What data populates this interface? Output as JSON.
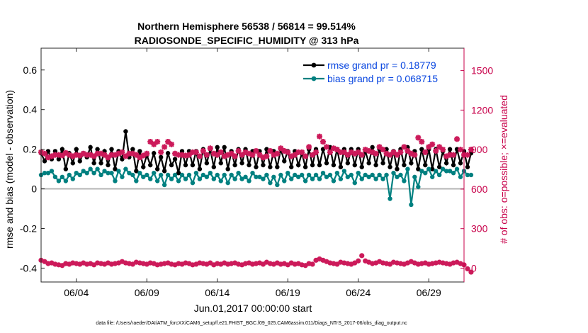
{
  "chart_data": {
    "type": "line",
    "title": "Northern Hemisphere 56538 / 56814 = 99.514%",
    "subtitle": "RADIOSONDE_SPECIFIC_HUMIDITY @ 313 hPa",
    "xlabel": "Jun.01,2017 00:00:00 start",
    "ylabel_left": "rmse and bias (model - observation)",
    "ylabel_right": "# of obs: o=possible; ×=evaluated",
    "footnote": "data file: /Users/raeder/DAI/ATM_forcXX/CAM6_setup/f.e21.FHIST_BGC.f09_025.CAM6assim.011/Diags_NTrS_2017-06/obs_diag_output.nc",
    "x_range": [
      1.5,
      31.5
    ],
    "x_ticks": [
      {
        "value": 4,
        "label": "06/04"
      },
      {
        "value": 9,
        "label": "06/09"
      },
      {
        "value": 14,
        "label": "06/14"
      },
      {
        "value": 19,
        "label": "06/19"
      },
      {
        "value": 24,
        "label": "06/24"
      },
      {
        "value": 29,
        "label": "06/29"
      }
    ],
    "ylim_left": [
      -0.47,
      0.71
    ],
    "yticks_left": [
      {
        "value": 0.6,
        "label": "0.6"
      },
      {
        "value": 0.4,
        "label": "0.4"
      },
      {
        "value": 0.2,
        "label": "0.2"
      },
      {
        "value": 0,
        "label": "0"
      },
      {
        "value": -0.2,
        "label": "-0.2"
      },
      {
        "value": -0.4,
        "label": "-0.4"
      }
    ],
    "ylim_right": [
      -105,
      1670
    ],
    "yticks_right": [
      {
        "value": 1500,
        "label": "1500"
      },
      {
        "value": 1200,
        "label": "1200"
      },
      {
        "value": 900,
        "label": "900"
      },
      {
        "value": 600,
        "label": "600"
      },
      {
        "value": 300,
        "label": "300"
      },
      {
        "value": 0,
        "label": "0"
      }
    ],
    "zero_line": 0,
    "x_start": 1.5,
    "x_step": 0.25,
    "series": [
      {
        "name": "rmse",
        "legend": "rmse grand pr = 0.18779",
        "axis": "left",
        "color": "#000000",
        "marker": "circle",
        "values": [
          0.18,
          0.14,
          0.19,
          0.15,
          0.19,
          0.15,
          0.2,
          0.1,
          0.18,
          0.13,
          0.2,
          0.14,
          0.18,
          0.16,
          0.21,
          0.13,
          0.2,
          0.13,
          0.19,
          0.12,
          0.2,
          0.1,
          0.19,
          0.15,
          0.29,
          0.16,
          0.2,
          0.09,
          0.19,
          0.11,
          0.17,
          0.12,
          0.18,
          0.1,
          0.16,
          0.09,
          0.18,
          0.12,
          0.15,
          0.08,
          0.19,
          0.12,
          0.19,
          0.12,
          0.19,
          0.1,
          0.2,
          0.13,
          0.2,
          0.11,
          0.21,
          0.13,
          0.21,
          0.1,
          0.19,
          0.12,
          0.2,
          0.13,
          0.2,
          0.12,
          0.19,
          0.11,
          0.19,
          0.12,
          0.2,
          0.11,
          0.19,
          0.11,
          0.2,
          0.14,
          0.19,
          0.11,
          0.19,
          0.12,
          0.18,
          0.11,
          0.2,
          0.12,
          0.2,
          0.12,
          0.2,
          0.13,
          0.21,
          0.12,
          0.2,
          0.11,
          0.2,
          0.13,
          0.2,
          0.12,
          0.2,
          0.11,
          0.19,
          0.13,
          0.21,
          0.12,
          0.2,
          0.13,
          0.2,
          0.11,
          0.19,
          0.1,
          0.2,
          0.12,
          0.21,
          0.13,
          0.19,
          0.1,
          0.2,
          0.12,
          0.2,
          0.1,
          0.2,
          0.11,
          0.19,
          0.13,
          0.2,
          0.12,
          0.2,
          0.13,
          0.19,
          0.11,
          0.18
        ]
      },
      {
        "name": "bias",
        "legend": "bias grand pr = 0.068715",
        "axis": "left",
        "color": "#008080",
        "marker": "circle",
        "values": [
          0.07,
          0.08,
          0.08,
          0.09,
          0.06,
          0.04,
          0.06,
          0.04,
          0.07,
          0.05,
          0.08,
          0.07,
          0.09,
          0.08,
          0.1,
          0.08,
          0.1,
          0.07,
          0.09,
          0.08,
          0.08,
          0.04,
          0.09,
          0.06,
          0.1,
          0.08,
          0.07,
          0.04,
          0.08,
          0.06,
          0.07,
          0.05,
          0.08,
          0.04,
          0.07,
          0.02,
          0.07,
          0.05,
          0.07,
          0.04,
          0.07,
          0.05,
          0.07,
          0.03,
          0.08,
          0.05,
          0.07,
          0.06,
          0.08,
          0.05,
          0.07,
          0.04,
          0.07,
          0.03,
          0.07,
          0.05,
          0.08,
          0.05,
          0.06,
          0.04,
          0.08,
          0.06,
          0.06,
          0.05,
          0.07,
          0.03,
          0.06,
          0.02,
          0.07,
          0.04,
          0.08,
          0.05,
          0.07,
          0.06,
          0.07,
          0.04,
          0.07,
          0.05,
          0.07,
          0.05,
          0.08,
          0.06,
          0.07,
          0.04,
          0.08,
          0.05,
          0.09,
          0.06,
          0.07,
          0.03,
          0.08,
          0.05,
          0.07,
          0.06,
          0.07,
          0.05,
          0.07,
          0.05,
          0.07,
          -0.05,
          0.08,
          0.06,
          0.07,
          0.04,
          0.1,
          -0.08,
          0.06,
          0.01,
          0.09,
          0.08,
          0.1,
          0.06,
          0.09,
          0.07,
          0.1,
          0.09,
          0.09,
          0.08,
          0.1,
          0.06,
          0.09,
          0.07,
          0.07
        ]
      },
      {
        "name": "obs possible",
        "axis": "right",
        "color": "#cc1a5a",
        "marker": "circle",
        "values": [
          60,
          50,
          35,
          40,
          30,
          25,
          20,
          35,
          30,
          40,
          35,
          30,
          40,
          30,
          35,
          25,
          40,
          35,
          30,
          40,
          30,
          35,
          40,
          50,
          40,
          35,
          30,
          45,
          40,
          35,
          30,
          40,
          35,
          25,
          30,
          35,
          40,
          30,
          25,
          35,
          30,
          40,
          35,
          25,
          30,
          40,
          35,
          30,
          40,
          25,
          35,
          30,
          40,
          30,
          35,
          40,
          30,
          25,
          35,
          40,
          30,
          35,
          40,
          30,
          45,
          35,
          30,
          40,
          30,
          35,
          25,
          40,
          30,
          35,
          25,
          20,
          35,
          30,
          60,
          70,
          60,
          50,
          40,
          35,
          30,
          45,
          40,
          35,
          30,
          40,
          55,
          95,
          55,
          45,
          35,
          40,
          50,
          40,
          35,
          30,
          45,
          40,
          35,
          30,
          40,
          50,
          40,
          30,
          35,
          40,
          30,
          35,
          40,
          45,
          40,
          35,
          30,
          40,
          45,
          35,
          25,
          -5,
          -30
        ]
      },
      {
        "name": "obs evaluated",
        "axis": "right",
        "color": "#cc1a5a",
        "marker": "x",
        "values": [
          880,
          870,
          840,
          850,
          860,
          860,
          855,
          875,
          860,
          850,
          860,
          855,
          870,
          860,
          860,
          850,
          870,
          870,
          860,
          840,
          860,
          860,
          870,
          880,
          850,
          870,
          870,
          860,
          840,
          855,
          870,
          960,
          940,
          960,
          880,
          920,
          960,
          940,
          870,
          860,
          860,
          855,
          860,
          880,
          880,
          850,
          890,
          860,
          910,
          870,
          860,
          880,
          850,
          860,
          870,
          850,
          890,
          860,
          880,
          870,
          860,
          890,
          860,
          840,
          850,
          890,
          860,
          870,
          910,
          890,
          880,
          850,
          860,
          880,
          880,
          850,
          920,
          860,
          880,
          1000,
          960,
          920,
          880,
          910,
          900,
          880,
          880,
          860,
          880,
          870,
          880,
          860,
          900,
          890,
          880,
          870,
          920,
          900,
          870,
          860,
          880,
          860,
          880,
          920,
          890,
          870,
          860,
          990,
          960,
          880,
          920,
          940,
          890,
          920,
          900,
          850,
          860,
          860,
          980,
          900,
          860,
          860,
          900
        ]
      }
    ]
  }
}
